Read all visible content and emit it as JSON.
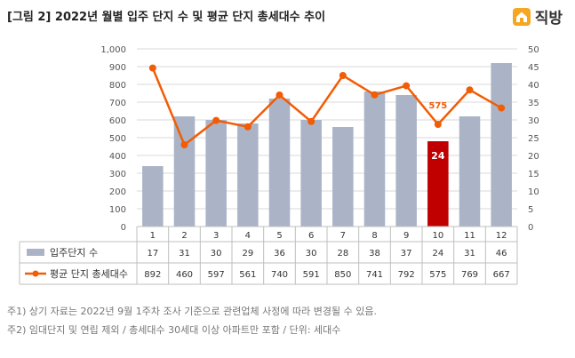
{
  "header": {
    "title": "[그림 2] 2022년 월별 입주 단지 수 및 평균 단지 총세대수 추이",
    "brand": "직방",
    "brand_icon": "house-logo-icon",
    "brand_color": "#f5a623"
  },
  "chart_data": {
    "type": "bar+line",
    "title": "[그림 2] 2022년 월별 입주 단지 수 및 평균 단지 총세대수 추이",
    "categories": [
      "1",
      "2",
      "3",
      "4",
      "5",
      "6",
      "7",
      "8",
      "9",
      "10",
      "11",
      "12"
    ],
    "series": [
      {
        "name": "입주단지 수",
        "type": "bar",
        "axis": "right",
        "values": [
          17,
          31,
          30,
          29,
          36,
          30,
          28,
          38,
          37,
          24,
          31,
          46
        ],
        "color": "#aab4c6",
        "highlight_index": 9,
        "highlight_color": "#c00000"
      },
      {
        "name": "평균 단지 총세대수",
        "type": "line",
        "axis": "left",
        "values": [
          892,
          460,
          597,
          561,
          740,
          591,
          850,
          741,
          792,
          575,
          769,
          667
        ],
        "color": "#f25c05"
      }
    ],
    "y_left": {
      "min": 0,
      "max": 1000,
      "step": 100,
      "ticks": [
        "0",
        "100",
        "200",
        "300",
        "400",
        "500",
        "600",
        "700",
        "800",
        "900",
        "1,000"
      ]
    },
    "y_right": {
      "min": 0,
      "max": 50,
      "step": 5,
      "ticks": [
        "0",
        "5",
        "10",
        "15",
        "20",
        "25",
        "30",
        "35",
        "40",
        "45",
        "50"
      ]
    },
    "annotations": {
      "bar_label": "24",
      "line_label": "575",
      "index": 9
    },
    "grid": true,
    "legend": "data-table-below"
  },
  "notes": [
    "주1) 상기 자료는 2022년 9월 1주차 조사 기준으로 관련업체 사정에 따라 변경될 수 있음.",
    "주2) 임대단지 및 연립 제외 / 총세대수 30세대 이상 아파트만 포함 / 단위: 세대수"
  ]
}
